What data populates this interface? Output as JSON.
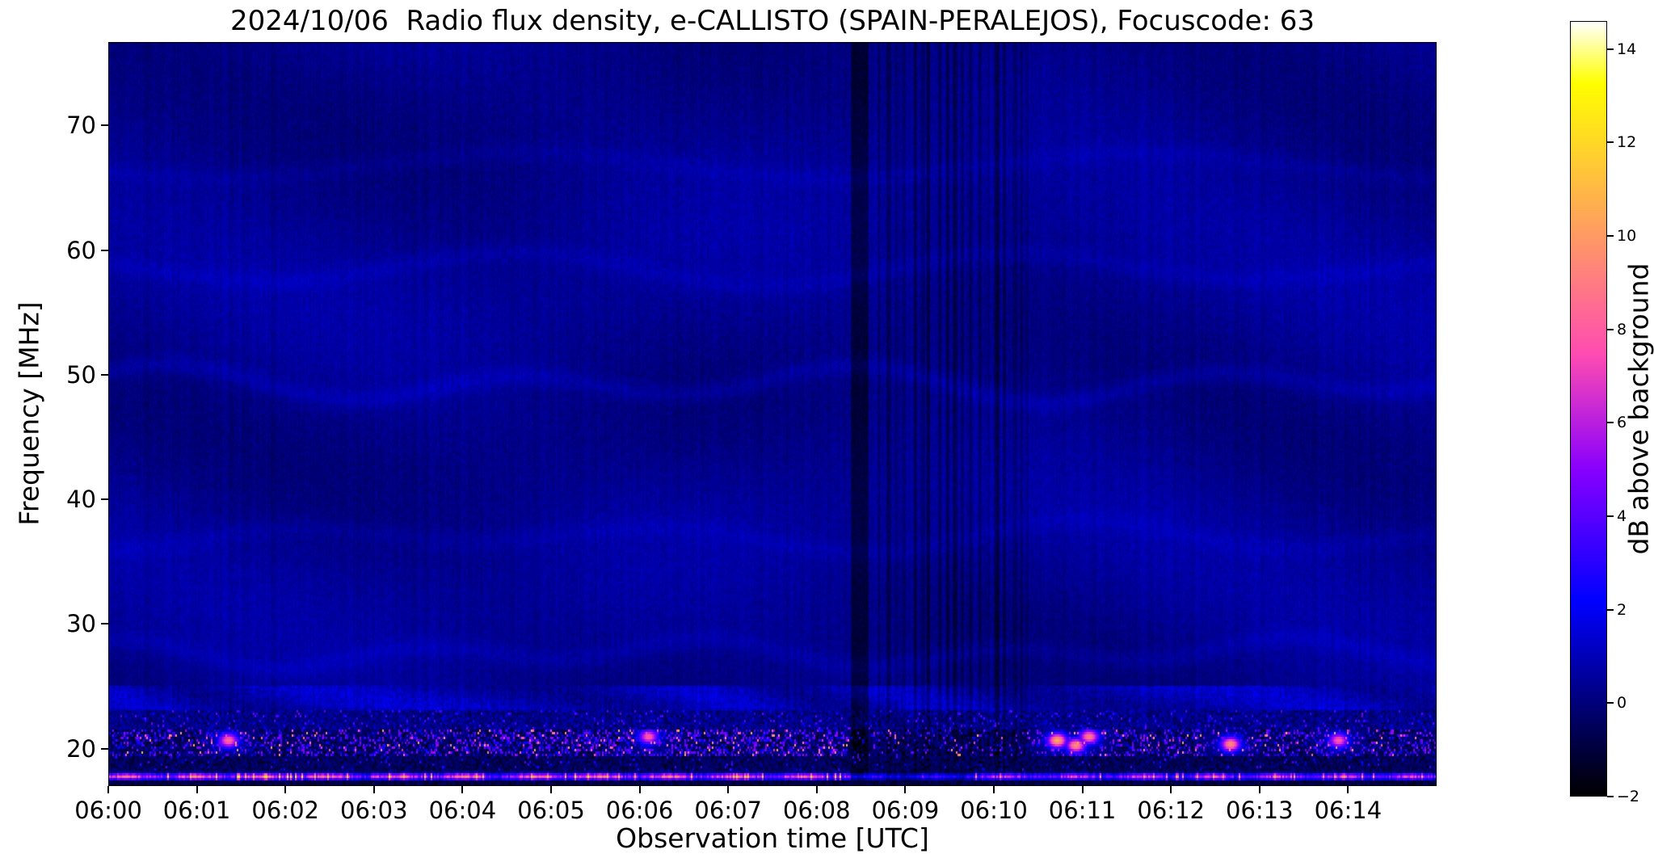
{
  "figure": {
    "background": "#ffffff"
  },
  "chart_data": {
    "type": "heatmap",
    "title": "2024/10/06  Radio flux density, e-CALLISTO (SPAIN-PERALEJOS), Focuscode: 63",
    "xlabel": "Observation time [UTC]",
    "ylabel": "Frequency [MHz]",
    "x_range_minutes": [
      0,
      15
    ],
    "x_ticks": [
      "06:00",
      "06:01",
      "06:02",
      "06:03",
      "06:04",
      "06:05",
      "06:06",
      "06:07",
      "06:08",
      "06:09",
      "06:10",
      "06:11",
      "06:12",
      "06:13",
      "06:14"
    ],
    "y_range_mhz": [
      17.0,
      76.7
    ],
    "y_ticks": [
      20,
      30,
      40,
      50,
      60,
      70
    ],
    "grid": false,
    "legend": "none",
    "colorbar": {
      "label": "dB above background",
      "vmin": -2,
      "vmax": 14.6,
      "ticks": [
        14,
        12,
        10,
        8,
        6,
        4,
        2,
        0,
        -2
      ],
      "tick_labels": [
        "14",
        "12",
        "10",
        "8",
        "6",
        "4",
        "2",
        "0",
        "−2"
      ],
      "colormap": "gnuplot2"
    },
    "features": {
      "background_db": 0.32,
      "rfi_region_top_mhz": 25,
      "wavy_band_mhz": [
        23,
        25
      ],
      "speckle_band_mhz": [
        19.4,
        21.4
      ],
      "dark_gap_mhz": [
        18.1,
        19.4
      ],
      "bright_line": {
        "center_mhz": 17.7,
        "sigma_mhz": 0.28,
        "typical_db": 9,
        "peak_db": 13
      },
      "dark_band_minutes": [
        8.38,
        8.58
      ],
      "dark_lines_minutes_range": [
        8.7,
        10.4
      ],
      "speckle_density_segments": [
        {
          "until": 4.3,
          "d": 0.55
        },
        {
          "until": 8.35,
          "d": 0.78
        },
        {
          "until": 10.45,
          "d": 0.22
        },
        {
          "until": 15,
          "d": 0.5
        }
      ],
      "hotspots": [
        {
          "t": 1.35,
          "f": 20.6,
          "db": 8.5
        },
        {
          "t": 6.1,
          "f": 20.9,
          "db": 8.0
        },
        {
          "t": 10.72,
          "f": 20.6,
          "db": 10.5
        },
        {
          "t": 10.93,
          "f": 20.2,
          "db": 9.5
        },
        {
          "t": 11.08,
          "f": 20.9,
          "db": 9.0
        },
        {
          "t": 12.68,
          "f": 20.3,
          "db": 9.5
        },
        {
          "t": 13.9,
          "f": 20.6,
          "db": 8.0
        }
      ],
      "filaments": [
        {
          "f": 49.2,
          "a": 1.1,
          "w": 1.6,
          "p": 0.5,
          "amp": 0.5
        },
        {
          "f": 58.5,
          "a": 0.9,
          "w": 1.2,
          "p": 2.1,
          "amp": 0.33
        },
        {
          "f": 66.8,
          "a": 1.3,
          "w": 0.9,
          "p": 4.0,
          "amp": 0.28
        },
        {
          "f": 27.6,
          "a": 0.8,
          "w": 1.9,
          "p": 1.2,
          "amp": 0.4
        },
        {
          "f": 37.0,
          "a": 0.9,
          "w": 1.4,
          "p": 5.1,
          "amp": 0.3
        }
      ]
    }
  }
}
